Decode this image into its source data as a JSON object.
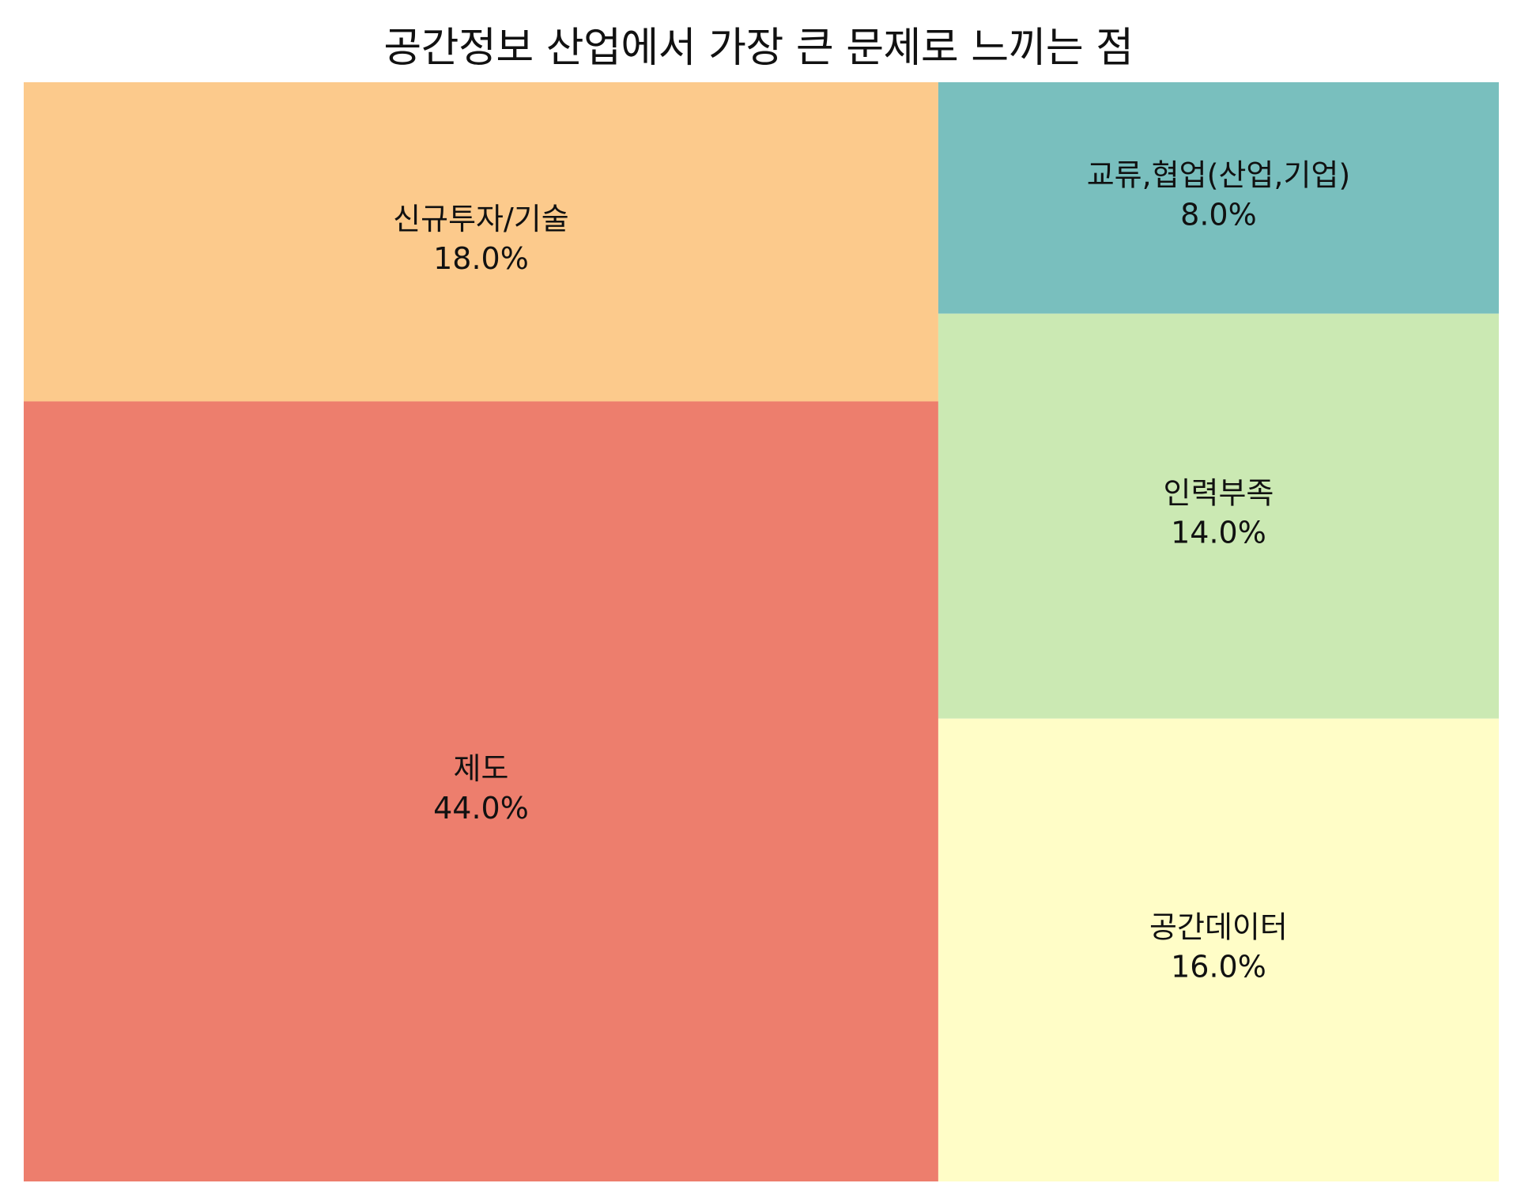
{
  "chart_data": {
    "type": "treemap",
    "title": "공간정보 산업에서 가장 큰 문제로 느끼는 점",
    "unit": "%",
    "items": [
      {
        "label": "제도",
        "value": 44.0,
        "value_label": "44.0%",
        "color": "#ed7e6d"
      },
      {
        "label": "신규투자/기술",
        "value": 18.0,
        "value_label": "18.0%",
        "color": "#fcca8c"
      },
      {
        "label": "공간데이터",
        "value": 16.0,
        "value_label": "16.0%",
        "color": "#fffdc7"
      },
      {
        "label": "인력부족",
        "value": 14.0,
        "value_label": "14.0%",
        "color": "#cbe9b3"
      },
      {
        "label": "교류,협업(산업,기업)",
        "value": 8.0,
        "value_label": "8.0%",
        "color": "#79bfbe"
      }
    ]
  }
}
